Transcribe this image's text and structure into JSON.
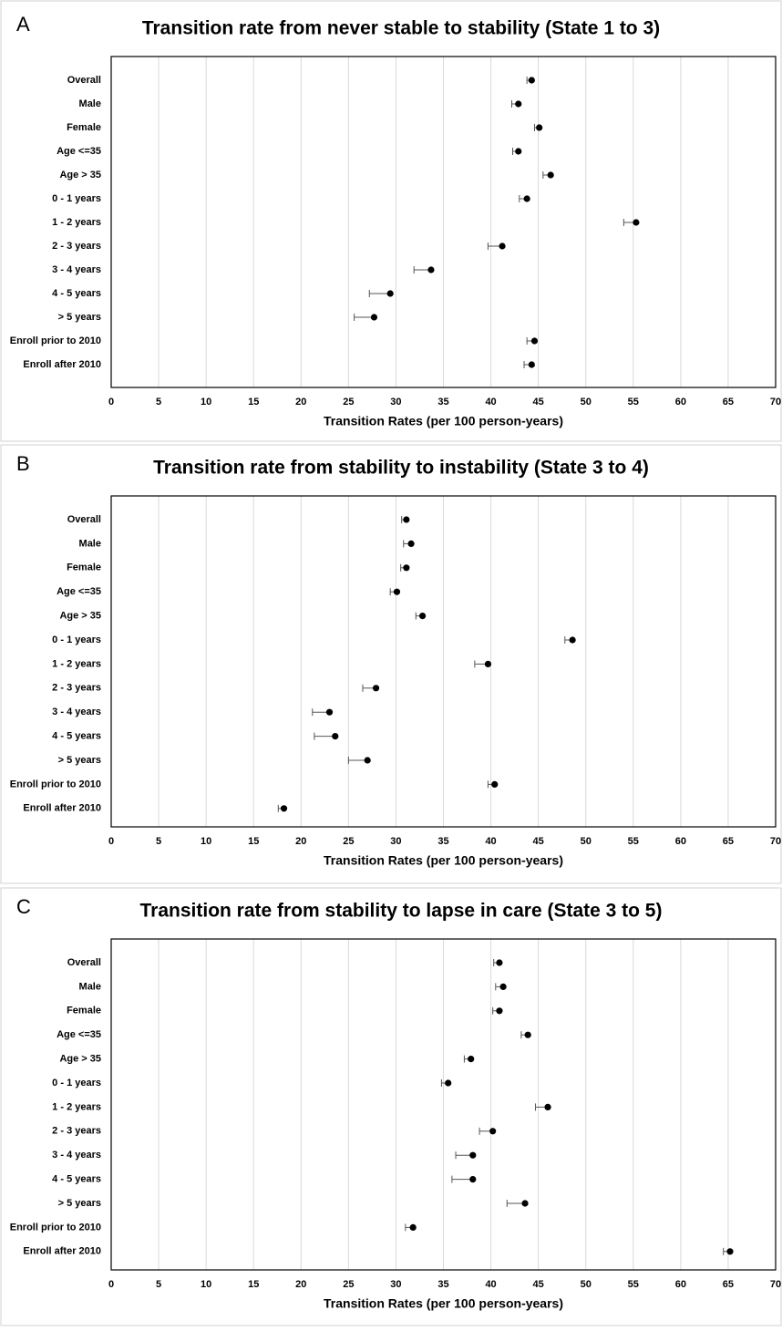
{
  "chart_data": [
    {
      "type": "dot",
      "panel": "A",
      "title": "Transition rate from never stable to stability (State 1 to 3)",
      "x_label": "Transition Rates (per 100 person-years)",
      "categories": [
        "Overall",
        "Male",
        "Female",
        "Age <=35",
        "Age > 35",
        "0 - 1 years",
        "1 - 2 years",
        "2 - 3 years",
        "3 - 4 years",
        "4 - 5 years",
        "> 5 years",
        "Enroll prior to 2010",
        "Enroll after 2010"
      ],
      "values": [
        44.3,
        42.9,
        45.1,
        42.9,
        46.3,
        43.8,
        55.3,
        41.2,
        33.7,
        29.4,
        27.7,
        44.6,
        44.3
      ],
      "lower": [
        43.8,
        42.2,
        44.6,
        42.3,
        45.5,
        43.0,
        54.0,
        39.7,
        31.9,
        27.2,
        25.6,
        43.8,
        43.5
      ],
      "color": "#000000",
      "xlim": [
        0,
        70
      ],
      "xticks": [
        0,
        5,
        10,
        15,
        20,
        25,
        30,
        35,
        40,
        45,
        50,
        55,
        60,
        65,
        70
      ],
      "grid": true
    },
    {
      "type": "dot",
      "panel": "B",
      "title": "Transition rate from stability to instability (State 3 to 4)",
      "x_label": "Transition Rates (per 100 person-years)",
      "categories": [
        "Overall",
        "Male",
        "Female",
        "Age <=35",
        "Age > 35",
        "0 - 1 years",
        "1 - 2 years",
        "2 - 3 years",
        "3 - 4 years",
        "4 - 5 years",
        "> 5 years",
        "Enroll prior to 2010",
        "Enroll after 2010"
      ],
      "values": [
        31.1,
        31.6,
        31.1,
        30.1,
        32.8,
        48.6,
        39.7,
        27.9,
        23.0,
        23.6,
        27.0,
        40.4,
        18.2
      ],
      "lower": [
        30.6,
        30.8,
        30.5,
        29.4,
        32.1,
        47.8,
        38.3,
        26.5,
        21.2,
        21.4,
        25.0,
        39.7,
        17.6
      ],
      "color": "#000000",
      "xlim": [
        0,
        70
      ],
      "xticks": [
        0,
        5,
        10,
        15,
        20,
        25,
        30,
        35,
        40,
        45,
        50,
        55,
        60,
        65,
        70
      ],
      "grid": true
    },
    {
      "type": "dot",
      "panel": "C",
      "title": "Transition rate from stability to lapse in care (State 3 to 5)",
      "x_label": "Transition Rates (per 100 person-years)",
      "categories": [
        "Overall",
        "Male",
        "Female",
        "Age <=35",
        "Age > 35",
        "0 - 1 years",
        "1 - 2 years",
        "2 - 3 years",
        "3 - 4 years",
        "4 - 5 years",
        "> 5 years",
        "Enroll prior to 2010",
        "Enroll after 2010"
      ],
      "values": [
        40.9,
        41.3,
        40.9,
        43.9,
        37.9,
        35.5,
        46.0,
        40.2,
        38.1,
        38.1,
        43.6,
        31.8,
        65.2
      ],
      "lower": [
        40.3,
        40.5,
        40.2,
        43.2,
        37.2,
        34.8,
        44.7,
        38.8,
        36.3,
        35.9,
        41.7,
        31.0,
        64.5
      ],
      "color": "#000000",
      "xlim": [
        0,
        70
      ],
      "xticks": [
        0,
        5,
        10,
        15,
        20,
        25,
        30,
        35,
        40,
        45,
        50,
        55,
        60,
        65,
        70
      ],
      "grid": true
    }
  ]
}
